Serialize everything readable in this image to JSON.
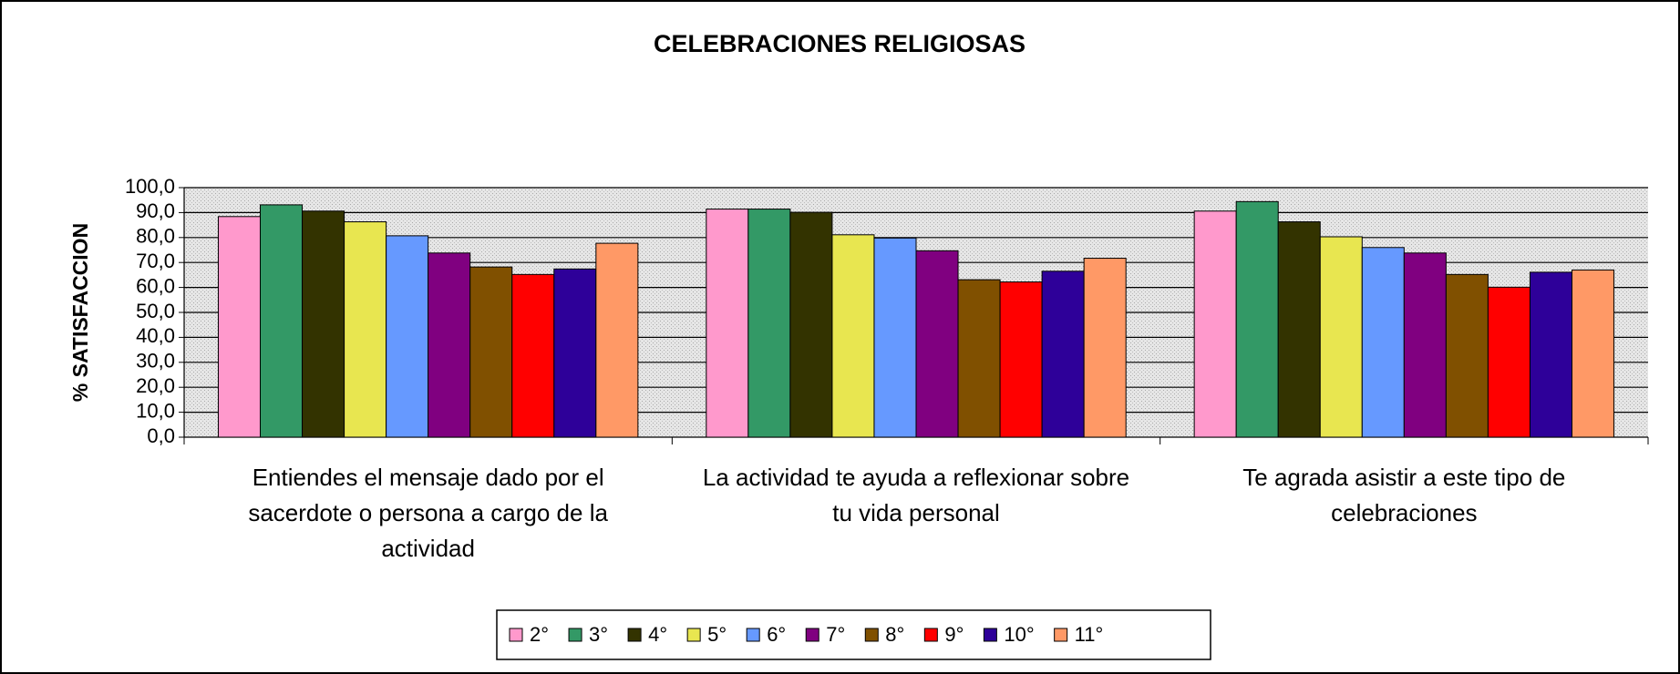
{
  "chart_data": {
    "type": "bar",
    "title": "CELEBRACIONES RELIGIOSAS",
    "y_label": "% SATISFACCION",
    "categories": [
      "Entiendes el mensaje dado por el sacerdote o persona a cargo de la actividad",
      "La actividad te ayuda a reflexionar sobre tu vida personal",
      "Te agrada asistir a este tipo de celebraciones"
    ],
    "series": [
      {
        "name": "2°",
        "color": "#ff99cc",
        "values": [
          88.4,
          91.4,
          90.6
        ]
      },
      {
        "name": "3°",
        "color": "#339966",
        "values": [
          93.1,
          91.4,
          94.4
        ]
      },
      {
        "name": "4°",
        "color": "#333300",
        "values": [
          90.6,
          90.1,
          86.3
        ]
      },
      {
        "name": "5°",
        "color": "#e8e650",
        "values": [
          86.3,
          81.1,
          80.3
        ]
      },
      {
        "name": "6°",
        "color": "#6699ff",
        "values": [
          80.7,
          79.8,
          76.0
        ]
      },
      {
        "name": "7°",
        "color": "#800080",
        "values": [
          73.8,
          74.7,
          73.8
        ]
      },
      {
        "name": "8°",
        "color": "#805000",
        "values": [
          68.2,
          63.1,
          65.2
        ]
      },
      {
        "name": "9°",
        "color": "#ff0000",
        "values": [
          65.2,
          62.2,
          60.1
        ]
      },
      {
        "name": "10°",
        "color": "#2e0099",
        "values": [
          67.4,
          66.5,
          66.1
        ]
      },
      {
        "name": "11°",
        "color": "#ff9966",
        "values": [
          77.7,
          71.7,
          67.0
        ]
      }
    ],
    "ylim": [
      0,
      100
    ],
    "yticks": [
      {
        "value": 0,
        "label": "0,0"
      },
      {
        "value": 10,
        "label": "10,0"
      },
      {
        "value": 20,
        "label": "20,0"
      },
      {
        "value": 30,
        "label": "30,0"
      },
      {
        "value": 40,
        "label": "40,0"
      },
      {
        "value": 50,
        "label": "50,0"
      },
      {
        "value": 60,
        "label": "60,0"
      },
      {
        "value": 70,
        "label": "70,0"
      },
      {
        "value": 80,
        "label": "80,0"
      },
      {
        "value": 90,
        "label": "90,0"
      },
      {
        "value": 100,
        "label": "100,0"
      }
    ],
    "grid": true,
    "legend": "bottom"
  }
}
